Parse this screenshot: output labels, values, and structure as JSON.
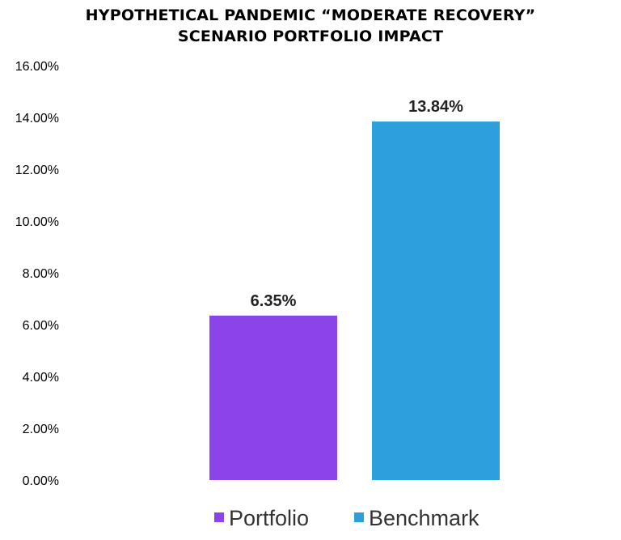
{
  "chart_data": {
    "type": "bar",
    "title_lines": [
      "HYPOTHETICAL PANDEMIC “MODERATE RECOVERY”",
      "SCENARIO PORTFOLIO IMPACT"
    ],
    "categories": [
      "Portfolio",
      "Benchmark"
    ],
    "values": [
      6.35,
      13.84
    ],
    "data_labels": [
      "6.35%",
      "13.84%"
    ],
    "colors": [
      "#8A44EA",
      "#2E9FDD"
    ],
    "ylim": [
      0,
      16
    ],
    "yticks": [
      0,
      2,
      4,
      6,
      8,
      10,
      12,
      14,
      16
    ],
    "ytick_labels": [
      "0.00%",
      "2.00%",
      "4.00%",
      "6.00%",
      "8.00%",
      "10.00%",
      "12.00%",
      "14.00%",
      "16.00%"
    ],
    "legend": {
      "position": "bottom",
      "entries": [
        "Portfolio",
        "Benchmark"
      ]
    },
    "grid": false,
    "xlabel": "",
    "ylabel": ""
  }
}
